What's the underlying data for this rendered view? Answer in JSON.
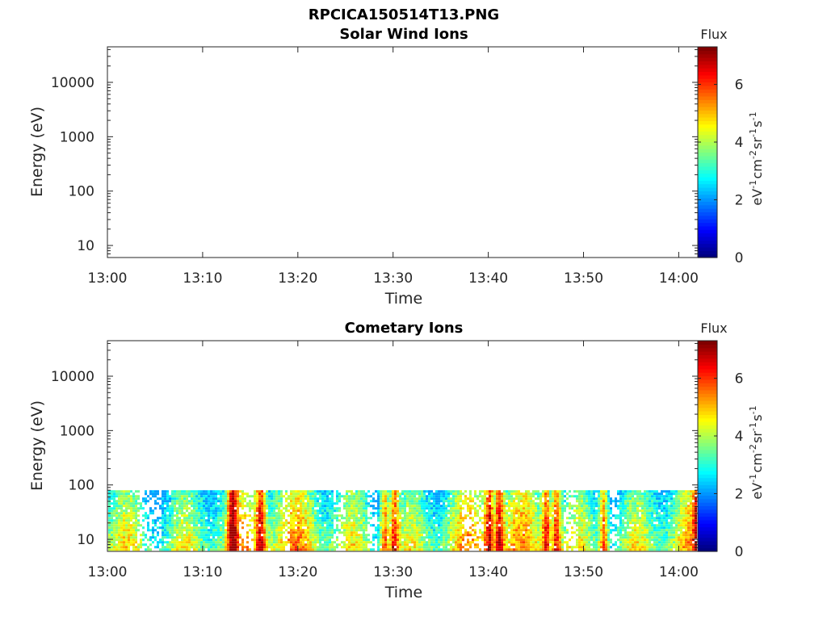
{
  "figure_title": "RPCICA150514T13.PNG",
  "chart_data": [
    {
      "type": "heatmap",
      "title": "Solar Wind Ions",
      "xlabel": "Time",
      "ylabel": "Energy (eV)",
      "x_ticks": [
        "13:00",
        "13:10",
        "13:20",
        "13:30",
        "13:40",
        "13:50",
        "14:00"
      ],
      "x_range": [
        "13:00",
        "14:02"
      ],
      "y_scale": "log",
      "y_ticks": [
        "10",
        "100",
        "1000",
        "10000"
      ],
      "y_range": [
        6,
        45000
      ],
      "colorbar": {
        "title": "Flux",
        "unit_base": [
          "eV",
          "cm",
          "sr",
          "s"
        ],
        "unit_exp": [
          "-1",
          "-2",
          "-1",
          "-1"
        ],
        "ticks": [
          "0",
          "2",
          "4",
          "6"
        ],
        "range": [
          0,
          7.3
        ]
      },
      "data_note": ""
    },
    {
      "type": "heatmap",
      "title": "Cometary Ions",
      "xlabel": "Time",
      "ylabel": "Energy (eV)",
      "x_ticks": [
        "13:00",
        "13:10",
        "13:20",
        "13:30",
        "13:40",
        "13:50",
        "14:00"
      ],
      "x_range": [
        "13:00",
        "14:02"
      ],
      "y_scale": "log",
      "y_ticks": [
        "10",
        "100",
        "1000",
        "10000"
      ],
      "y_range": [
        6,
        45000
      ],
      "colorbar": {
        "title": "Flux",
        "unit_base": [
          "eV",
          "cm",
          "sr",
          "s"
        ],
        "unit_exp": [
          "-1",
          "-2",
          "-1",
          "-1"
        ],
        "ticks": [
          "0",
          "2",
          "4",
          "6"
        ],
        "range": [
          0,
          7.3
        ]
      },
      "energy_band_max": 80,
      "enhanced_flux_times": [
        "13:13",
        "13:16",
        "13:29",
        "13:30",
        "13:40",
        "13:41",
        "13:46",
        "13:47",
        "13:52",
        "14:02"
      ]
    }
  ]
}
